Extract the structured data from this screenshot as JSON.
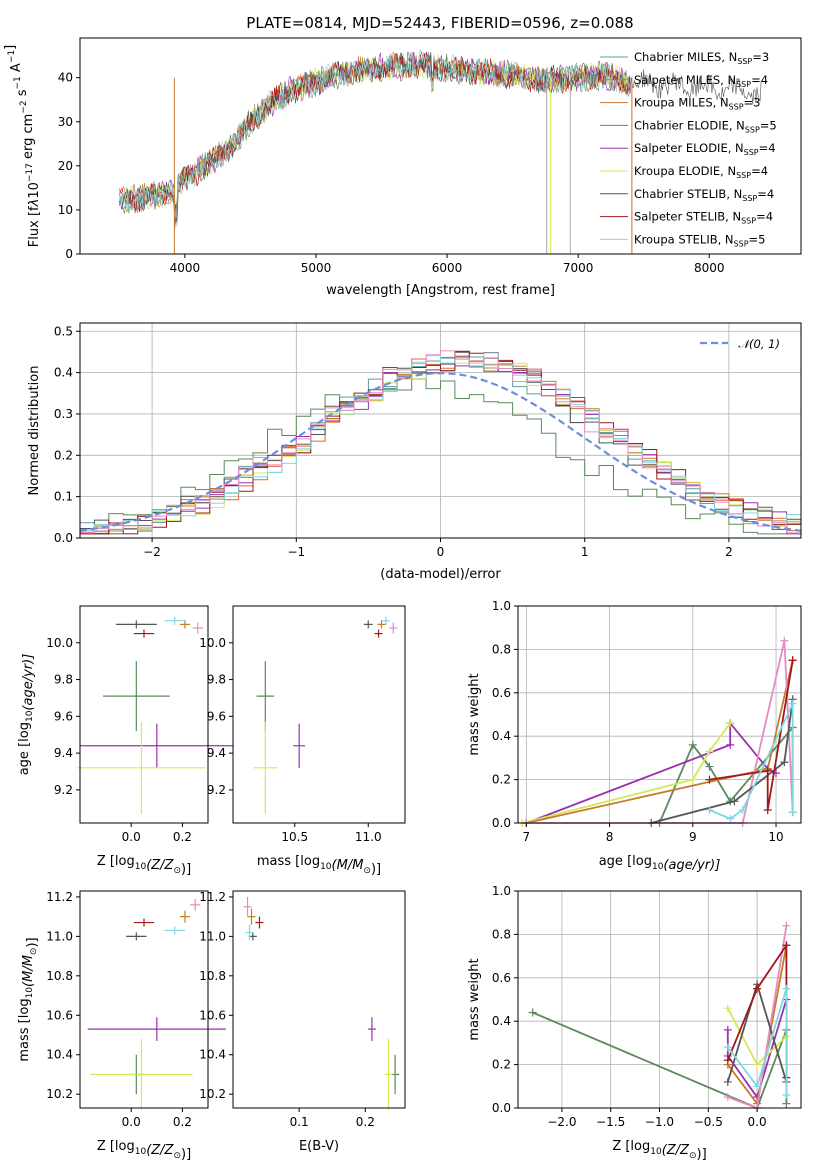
{
  "title": "PLATE=0814, MJD=52443, FIBERID=0596, z=0.088",
  "colors": {
    "chabrier_miles": "#5f9ea0",
    "salpeter_miles": "#e9642f",
    "kroupa_miles": "#c77a2a",
    "chabrier_elodie": "#5a8a5a",
    "salpeter_elodie": "#9b30b0",
    "kroupa_elodie": "#d4e85a",
    "chabrier_stelib": "#555555",
    "salpeter_stelib": "#a01818",
    "kroupa_stelib": "#7fd8e0",
    "gauss": "#6a8ee0",
    "grid": "#b0b0b0"
  },
  "chart_data": [
    {
      "id": "spectrum",
      "type": "line",
      "xlabel": "wavelength [Angstrom, rest frame]",
      "ylabel": "Flux [f",
      "ylabel_mid": "10",
      "ylabel_exp1": "−17",
      "ylabel_end": " erg cm",
      "ylabel_exp2": "−2",
      "ylabel_s": " s",
      "ylabel_exp3": "−1",
      "ylabel_a": " A",
      "ylabel_exp4": "−1",
      "ylabel_close": "]",
      "xlim": [
        3200,
        8700
      ],
      "ylim": [
        0,
        49
      ],
      "xticks": [
        "4000",
        "5000",
        "6000",
        "7000",
        "8000"
      ],
      "xtick_values": [
        4000,
        5000,
        6000,
        7000,
        8000
      ],
      "yticks": [
        "0",
        "10",
        "20",
        "30",
        "40"
      ],
      "ytick_values": [
        0,
        10,
        20,
        30,
        40
      ],
      "continuum": [
        [
          3500,
          12
        ],
        [
          3700,
          13
        ],
        [
          3900,
          14
        ],
        [
          4000,
          17
        ],
        [
          4100,
          19
        ],
        [
          4200,
          21
        ],
        [
          4300,
          23
        ],
        [
          4400,
          26
        ],
        [
          4500,
          30
        ],
        [
          4600,
          33
        ],
        [
          4700,
          35
        ],
        [
          4800,
          37
        ],
        [
          4900,
          38
        ],
        [
          5000,
          39
        ],
        [
          5100,
          40
        ],
        [
          5200,
          41
        ],
        [
          5400,
          42
        ],
        [
          5600,
          42.5
        ],
        [
          5800,
          43
        ],
        [
          6000,
          42
        ],
        [
          6200,
          41.5
        ],
        [
          6400,
          41
        ],
        [
          6600,
          40
        ],
        [
          6800,
          39.5
        ],
        [
          7000,
          40
        ],
        [
          7200,
          40.5
        ],
        [
          7400,
          39
        ],
        [
          7600,
          38.5
        ],
        [
          7800,
          38
        ],
        [
          8000,
          37.5
        ],
        [
          8200,
          37
        ],
        [
          8400,
          36.5
        ]
      ],
      "legend": [
        {
          "pre": "Chabrier MILES, N",
          "sub": "SSP",
          "post": "=3",
          "color": "#5f9ea0"
        },
        {
          "pre": "Salpeter MILES, N",
          "sub": "SSP",
          "post": "=4",
          "color": "#e9642f"
        },
        {
          "pre": "Kroupa MILES, N",
          "sub": "SSP",
          "post": "=3",
          "color": "#c77a2a"
        },
        {
          "pre": "Chabrier ELODIE, N",
          "sub": "SSP",
          "post": "=5",
          "color": "#5a8a5a"
        },
        {
          "pre": "Salpeter ELODIE, N",
          "sub": "SSP",
          "post": "=4",
          "color": "#9b30b0"
        },
        {
          "pre": "Kroupa ELODIE, N",
          "sub": "SSP",
          "post": "=4",
          "color": "#d4e85a"
        },
        {
          "pre": "Chabrier STELIB, N",
          "sub": "SSP",
          "post": "=4",
          "color": "#555555"
        },
        {
          "pre": "Salpeter STELIB, N",
          "sub": "SSP",
          "post": "=4",
          "color": "#a01818"
        },
        {
          "pre": "Kroupa STELIB, N",
          "sub": "SSP",
          "post": "=5",
          "color": "#7fd8e0"
        }
      ],
      "legend_loc": "upper right"
    },
    {
      "id": "residual-hist",
      "type": "histogram",
      "xlabel": "(data-model)/error",
      "ylabel": "Normed distribution",
      "xlim": [
        -2.5,
        2.5
      ],
      "ylim": [
        0,
        0.52
      ],
      "xticks": [
        "−2",
        "−1",
        "0",
        "1",
        "2"
      ],
      "xtick_values": [
        -2,
        -1,
        0,
        1,
        2
      ],
      "yticks": [
        "0.0",
        "0.1",
        "0.2",
        "0.3",
        "0.4",
        "0.5"
      ],
      "ytick_values": [
        0,
        0.1,
        0.2,
        0.3,
        0.4,
        0.5
      ],
      "gauss_label": "𝒩(0, 1)",
      "grid": true,
      "legend_loc": "upper right"
    },
    {
      "id": "age-vs-z",
      "type": "scatter",
      "xlabel_pre": "Z [log",
      "xlabel_sub": "10",
      "xlabel_post": "(Z/Z",
      "xlabel_sun": "⊙",
      "xlabel_close": ")]",
      "ylabel_pre": "age  [log",
      "ylabel_sub": "10",
      "ylabel_post": "(age/yr)]",
      "xlim": [
        -0.2,
        0.3
      ],
      "ylim": [
        9.02,
        10.2
      ],
      "xticks": [
        "0.0",
        "0.2"
      ],
      "xtick_values": [
        0,
        0.2
      ],
      "yticks": [
        "9.2",
        "9.4",
        "9.6",
        "9.8",
        "10.0"
      ],
      "ytick_values": [
        9.2,
        9.4,
        9.6,
        9.8,
        10.0
      ],
      "points": [
        {
          "x": 0.02,
          "y": 10.1,
          "xerr": 0.08,
          "yerr": 0.0,
          "color": "#555555"
        },
        {
          "x": 0.05,
          "y": 10.05,
          "xerr": 0.04,
          "yerr": 0.02,
          "color": "#a01818"
        },
        {
          "x": 0.17,
          "y": 10.12,
          "xerr": 0.04,
          "yerr": 0.02,
          "color": "#7fd8e0"
        },
        {
          "x": 0.21,
          "y": 10.1,
          "xerr": 0.02,
          "yerr": 0.02,
          "color": "#c77a2a"
        },
        {
          "x": 0.26,
          "y": 10.08,
          "xerr": 0.02,
          "yerr": 0.03,
          "color": "#e78ac3"
        },
        {
          "x": 0.02,
          "y": 9.71,
          "xerr": 0.13,
          "yerr": 0.19,
          "color": "#5a8a5a"
        },
        {
          "x": 0.1,
          "y": 9.44,
          "xerr": 0.3,
          "yerr": 0.12,
          "color": "#9b30b0"
        },
        {
          "x": 0.04,
          "y": 9.32,
          "xerr": 0.25,
          "yerr": 0.25,
          "color": "#d4e85a"
        }
      ]
    },
    {
      "id": "age-vs-mass",
      "type": "scatter",
      "xlabel_pre": "mass [log",
      "xlabel_sub": "10",
      "xlabel_post": "(M/M",
      "xlabel_sun": "⊙",
      "xlabel_close": ")]",
      "xlim": [
        10.08,
        11.25
      ],
      "ylim": [
        9.02,
        10.2
      ],
      "xticks": [
        "10.5",
        "11.0"
      ],
      "xtick_values": [
        10.5,
        11.0
      ],
      "yticks": [
        "9.2",
        "9.4",
        "9.6",
        "9.8",
        "10.0"
      ],
      "ytick_values": [
        9.2,
        9.4,
        9.6,
        9.8,
        10.0
      ],
      "points": [
        {
          "x": 11.0,
          "y": 10.1,
          "xerr": 0.03,
          "yerr": 0.0,
          "color": "#555555"
        },
        {
          "x": 11.07,
          "y": 10.05,
          "xerr": 0.02,
          "yerr": 0.02,
          "color": "#a01818"
        },
        {
          "x": 11.12,
          "y": 10.12,
          "xerr": 0.02,
          "yerr": 0.02,
          "color": "#7fd8e0"
        },
        {
          "x": 11.09,
          "y": 10.1,
          "xerr": 0.02,
          "yerr": 0.02,
          "color": "#c77a2a"
        },
        {
          "x": 11.17,
          "y": 10.08,
          "xerr": 0.02,
          "yerr": 0.03,
          "color": "#e78ac3"
        },
        {
          "x": 10.3,
          "y": 9.71,
          "xerr": 0.06,
          "yerr": 0.19,
          "color": "#5a8a5a"
        },
        {
          "x": 10.53,
          "y": 9.44,
          "xerr": 0.04,
          "yerr": 0.12,
          "color": "#9b30b0"
        },
        {
          "x": 10.3,
          "y": 9.32,
          "xerr": 0.08,
          "yerr": 0.25,
          "color": "#d4e85a"
        }
      ]
    },
    {
      "id": "weight-vs-age",
      "type": "line",
      "xlabel_pre": "age  [log",
      "xlabel_sub": "10",
      "xlabel_post": "(age/yr)]",
      "ylabel": "mass weight",
      "xlim": [
        6.9,
        10.3
      ],
      "ylim": [
        0,
        1.0
      ],
      "xticks": [
        "7",
        "8",
        "9",
        "10"
      ],
      "xtick_values": [
        7,
        8,
        9,
        10
      ],
      "yticks": [
        "0.0",
        "0.2",
        "0.4",
        "0.6",
        "0.8",
        "1.0"
      ],
      "ytick_values": [
        0,
        0.2,
        0.4,
        0.6,
        0.8,
        1.0
      ],
      "grid": true,
      "series": [
        {
          "color": "#5a8a5a",
          "points": [
            [
              8.6,
              0
            ],
            [
              9.0,
              0.36
            ],
            [
              9.2,
              0.26
            ],
            [
              9.45,
              0.1
            ],
            [
              10.2,
              0.44
            ],
            [
              10.2,
              0.05
            ]
          ]
        },
        {
          "color": "#9b30b0",
          "points": [
            [
              7.0,
              0
            ],
            [
              9.45,
              0.36
            ],
            [
              9.45,
              0.46
            ],
            [
              9.9,
              0.25
            ],
            [
              10.0,
              0.23
            ]
          ]
        },
        {
          "color": "#d4e85a",
          "points": [
            [
              6.95,
              0
            ],
            [
              9.0,
              0.2
            ],
            [
              9.2,
              0.33
            ],
            [
              9.45,
              0.46
            ]
          ]
        },
        {
          "color": "#c77a2a",
          "points": [
            [
              7.0,
              0
            ],
            [
              9.9,
              0.25
            ],
            [
              10.2,
              0.75
            ]
          ]
        },
        {
          "color": "#e78ac3",
          "points": [
            [
              7.0,
              0
            ],
            [
              9.6,
              0.0
            ],
            [
              10.1,
              0.84
            ],
            [
              10.2,
              0.05
            ]
          ]
        },
        {
          "color": "#555555",
          "points": [
            [
              8.5,
              0
            ],
            [
              9.5,
              0.1
            ],
            [
              10.1,
              0.28
            ],
            [
              10.2,
              0.57
            ]
          ]
        },
        {
          "color": "#a01818",
          "points": [
            [
              9.2,
              0.2
            ],
            [
              9.9,
              0.24
            ],
            [
              9.9,
              0.06
            ],
            [
              10.2,
              0.75
            ]
          ]
        },
        {
          "color": "#7fd8e0",
          "points": [
            [
              9.2,
              0.06
            ],
            [
              9.45,
              0.02
            ],
            [
              9.6,
              0.06
            ],
            [
              10.2,
              0.55
            ],
            [
              10.2,
              0.05
            ]
          ]
        }
      ]
    },
    {
      "id": "mass-vs-z",
      "type": "scatter",
      "xlabel_pre": "Z [log",
      "xlabel_sub": "10",
      "xlabel_post": "(Z/Z",
      "xlabel_sun": "⊙",
      "xlabel_close": ")]",
      "ylabel_pre": "mass [log",
      "ylabel_sub": "10",
      "ylabel_post": "(M/M",
      "ylabel_sun": "⊙",
      "ylabel_close": ")]",
      "xlim": [
        -0.2,
        0.3
      ],
      "ylim": [
        10.13,
        11.23
      ],
      "xticks": [
        "0.0",
        "0.2"
      ],
      "xtick_values": [
        0,
        0.2
      ],
      "yticks": [
        "10.2",
        "10.4",
        "10.6",
        "10.8",
        "11.0",
        "11.2"
      ],
      "ytick_values": [
        10.2,
        10.4,
        10.6,
        10.8,
        11.0,
        11.2
      ],
      "points": [
        {
          "x": 0.02,
          "y": 11.0,
          "xerr": 0.04,
          "yerr": 0.0,
          "color": "#555555"
        },
        {
          "x": 0.05,
          "y": 11.07,
          "xerr": 0.04,
          "yerr": 0.02,
          "color": "#a01818"
        },
        {
          "x": 0.17,
          "y": 11.03,
          "xerr": 0.04,
          "yerr": 0.02,
          "color": "#7fd8e0"
        },
        {
          "x": 0.21,
          "y": 11.1,
          "xerr": 0.02,
          "yerr": 0.03,
          "color": "#c77a2a"
        },
        {
          "x": 0.25,
          "y": 11.16,
          "xerr": 0.02,
          "yerr": 0.03,
          "color": "#e78ac3"
        },
        {
          "x": 0.02,
          "y": 10.3,
          "xerr": 0.03,
          "yerr": 0.1,
          "color": "#5a8a5a"
        },
        {
          "x": 0.1,
          "y": 10.53,
          "xerr": 0.27,
          "yerr": 0.06,
          "color": "#9b30b0"
        },
        {
          "x": 0.04,
          "y": 10.3,
          "xerr": 0.2,
          "yerr": 0.18,
          "color": "#d4e85a"
        }
      ]
    },
    {
      "id": "mass-vs-ebv",
      "type": "scatter",
      "xlabel": "E(B-V)",
      "xlim": [
        0.0,
        0.26
      ],
      "ylim": [
        10.13,
        11.23
      ],
      "xticks": [
        "0.1",
        "0.2"
      ],
      "xtick_values": [
        0.1,
        0.2
      ],
      "yticks": [
        "10.2",
        "10.4",
        "10.6",
        "10.8",
        "11.0",
        "11.2"
      ],
      "ytick_values": [
        10.2,
        10.4,
        10.6,
        10.8,
        11.0,
        11.2
      ],
      "points": [
        {
          "x": 0.03,
          "y": 11.0,
          "xerr": 0,
          "yerr": 0.02,
          "color": "#555555"
        },
        {
          "x": 0.04,
          "y": 11.07,
          "xerr": 0,
          "yerr": 0.03,
          "color": "#a01818"
        },
        {
          "x": 0.025,
          "y": 11.02,
          "xerr": 0,
          "yerr": 0.04,
          "color": "#7fd8e0"
        },
        {
          "x": 0.028,
          "y": 11.1,
          "xerr": 0,
          "yerr": 0.04,
          "color": "#c77a2a"
        },
        {
          "x": 0.022,
          "y": 11.15,
          "xerr": 0,
          "yerr": 0.05,
          "color": "#e78ac3"
        },
        {
          "x": 0.245,
          "y": 10.3,
          "xerr": 0,
          "yerr": 0.1,
          "color": "#5a8a5a"
        },
        {
          "x": 0.21,
          "y": 10.53,
          "xerr": 0,
          "yerr": 0.06,
          "color": "#9b30b0"
        },
        {
          "x": 0.235,
          "y": 10.3,
          "xerr": 0,
          "yerr": 0.18,
          "color": "#d4e85a"
        }
      ]
    },
    {
      "id": "weight-vs-z",
      "type": "line",
      "xlabel_pre": "Z [log",
      "xlabel_sub": "10",
      "xlabel_post": "(Z/Z",
      "xlabel_sun": "⊙",
      "xlabel_close": ")]",
      "ylabel": "mass weight",
      "xlim": [
        -2.45,
        0.45
      ],
      "ylim": [
        0,
        1.0
      ],
      "xticks": [
        "−2.0",
        "−1.5",
        "−1.0",
        "−0.5",
        "0.0"
      ],
      "xtick_values": [
        -2.0,
        -1.5,
        -1.0,
        -0.5,
        0.0
      ],
      "yticks": [
        "0.0",
        "0.2",
        "0.4",
        "0.6",
        "0.8",
        "1.0"
      ],
      "ytick_values": [
        0,
        0.2,
        0.4,
        0.6,
        0.8,
        1.0
      ],
      "grid": true,
      "series": [
        {
          "color": "#5a8a5a",
          "points": [
            [
              -2.3,
              0.44
            ],
            [
              0.0,
              0.0
            ],
            [
              0.3,
              0.36
            ],
            [
              0.3,
              0.02
            ]
          ]
        },
        {
          "color": "#9b30b0",
          "points": [
            [
              -0.3,
              0.36
            ],
            [
              -0.3,
              0.24
            ],
            [
              0.0,
              0.05
            ],
            [
              0.3,
              0.5
            ]
          ]
        },
        {
          "color": "#d4e85a",
          "points": [
            [
              -0.3,
              0.46
            ],
            [
              0.0,
              0.2
            ],
            [
              0.3,
              0.33
            ]
          ]
        },
        {
          "color": "#c77a2a",
          "points": [
            [
              -0.3,
              0.2
            ],
            [
              0.0,
              0.02
            ],
            [
              0.3,
              0.75
            ]
          ]
        },
        {
          "color": "#e78ac3",
          "points": [
            [
              -0.3,
              0.05
            ],
            [
              0.0,
              0.0
            ],
            [
              0.3,
              0.84
            ]
          ]
        },
        {
          "color": "#555555",
          "points": [
            [
              -0.3,
              0.12
            ],
            [
              0.0,
              0.57
            ],
            [
              0.3,
              0.12
            ]
          ]
        },
        {
          "color": "#a01818",
          "points": [
            [
              -0.3,
              0.22
            ],
            [
              0.0,
              0.55
            ],
            [
              0.3,
              0.75
            ],
            [
              0.3,
              0.14
            ]
          ]
        },
        {
          "color": "#7fd8e0",
          "points": [
            [
              -0.3,
              0.28
            ],
            [
              0.0,
              0.1
            ],
            [
              0.3,
              0.55
            ],
            [
              0.3,
              0.06
            ]
          ]
        }
      ]
    }
  ]
}
